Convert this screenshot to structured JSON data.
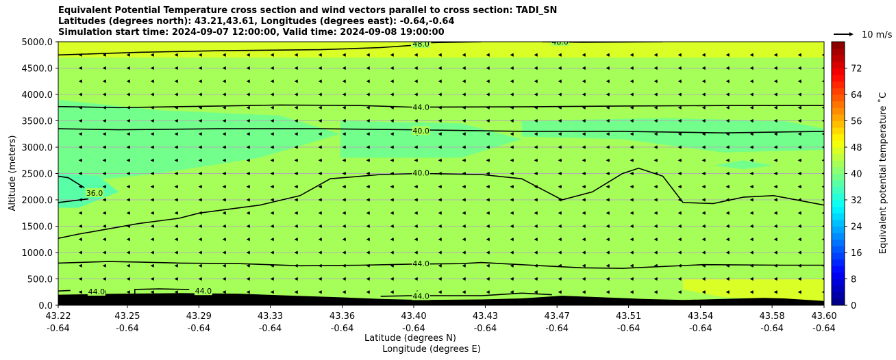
{
  "chart_data": {
    "type": "heatmap",
    "title_lines": [
      "Equivalent Potential Temperature cross section and wind vectors parallel to cross section: TADI_SN",
      "Latitudes (degrees north): 43.21,43.61, Longitudes (degrees east): -0.64,-0.64",
      "Simulation start time: 2024-09-07 12:00:00, Valid time: 2024-09-08 19:00:00"
    ],
    "xlabel_lines": [
      "Latitude (degrees N)",
      "Longitude (degrees E)"
    ],
    "ylabel": "Altitude (meters)",
    "colorbar_label": "Equivalent potential temperature ˚C",
    "wind_key_label": "10 m/s",
    "ylim": [
      0,
      5000
    ],
    "xlim": [
      43.22,
      43.6
    ],
    "x_ticks": [
      {
        "lat": "43.22",
        "lon": "-0.64",
        "v": 43.22
      },
      {
        "lat": "43.25",
        "lon": "-0.64",
        "v": 43.2543
      },
      {
        "lat": "43.29",
        "lon": "-0.64",
        "v": 43.2898
      },
      {
        "lat": "43.33",
        "lon": "-0.64",
        "v": 43.3252
      },
      {
        "lat": "43.36",
        "lon": "-0.64",
        "v": 43.3609
      },
      {
        "lat": "43.40",
        "lon": "-0.64",
        "v": 43.3964
      },
      {
        "lat": "43.43",
        "lon": "-0.64",
        "v": 43.4319
      },
      {
        "lat": "43.47",
        "lon": "-0.64",
        "v": 43.4675
      },
      {
        "lat": "43.51",
        "lon": "-0.64",
        "v": 43.503
      },
      {
        "lat": "43.54",
        "lon": "-0.64",
        "v": 43.5387
      },
      {
        "lat": "43.58",
        "lon": "-0.64",
        "v": 43.5742
      },
      {
        "lat": "43.60",
        "lon": "-0.64",
        "v": 43.6
      }
    ],
    "y_ticks": [
      {
        "label": "0.0",
        "v": 0
      },
      {
        "label": "500.0",
        "v": 500
      },
      {
        "label": "1000.0",
        "v": 1000
      },
      {
        "label": "1500.0",
        "v": 1500
      },
      {
        "label": "2000.0",
        "v": 2000
      },
      {
        "label": "2500.0",
        "v": 2500
      },
      {
        "label": "3000.0",
        "v": 3000
      },
      {
        "label": "3500.0",
        "v": 3500
      },
      {
        "label": "4000.0",
        "v": 4000
      },
      {
        "label": "4500.0",
        "v": 4500
      },
      {
        "label": "5000.0",
        "v": 5000
      }
    ],
    "colorbar": {
      "min": 0,
      "max": 80,
      "ticks": [
        "0",
        "8",
        "16",
        "24",
        "32",
        "40",
        "48",
        "56",
        "64",
        "72"
      ],
      "tick_values": [
        0,
        8,
        16,
        24,
        32,
        40,
        48,
        56,
        64,
        72
      ]
    },
    "background_fill_value": 42,
    "fill_regions": [
      {
        "value": 47,
        "points": [
          [
            43.22,
            4700
          ],
          [
            43.6,
            4700
          ],
          [
            43.6,
            5000
          ],
          [
            43.22,
            5000
          ]
        ]
      },
      {
        "value": 38,
        "points": [
          [
            43.22,
            3900
          ],
          [
            43.27,
            3700
          ],
          [
            43.33,
            3600
          ],
          [
            43.36,
            3250
          ],
          [
            43.32,
            2800
          ],
          [
            43.27,
            2500
          ],
          [
            43.22,
            2300
          ]
        ]
      },
      {
        "value": 38,
        "points": [
          [
            43.36,
            3500
          ],
          [
            43.42,
            3450
          ],
          [
            43.45,
            3150
          ],
          [
            43.42,
            2800
          ],
          [
            43.36,
            2800
          ]
        ]
      },
      {
        "value": 38,
        "points": [
          [
            43.45,
            3500
          ],
          [
            43.52,
            3550
          ],
          [
            43.58,
            3500
          ],
          [
            43.6,
            3350
          ],
          [
            43.6,
            2950
          ],
          [
            43.55,
            2900
          ],
          [
            43.5,
            3150
          ],
          [
            43.45,
            3200
          ]
        ]
      },
      {
        "value": 36,
        "points": [
          [
            43.22,
            2500
          ],
          [
            43.24,
            2450
          ],
          [
            43.25,
            2150
          ],
          [
            43.23,
            1850
          ],
          [
            43.22,
            1850
          ]
        ]
      },
      {
        "value": 38.5,
        "points": [
          [
            43.545,
            2650
          ],
          [
            43.56,
            2750
          ],
          [
            43.575,
            2650
          ],
          [
            43.56,
            2580
          ]
        ]
      },
      {
        "value": 47,
        "points": [
          [
            43.53,
            500
          ],
          [
            43.6,
            500
          ],
          [
            43.6,
            80
          ],
          [
            43.55,
            150
          ],
          [
            43.53,
            300
          ]
        ]
      }
    ],
    "contours": [
      {
        "label": "48.0",
        "points": [
          [
            43.22,
            4750
          ],
          [
            43.26,
            4800
          ],
          [
            43.3,
            4830
          ],
          [
            43.35,
            4850
          ],
          [
            43.38,
            4890
          ],
          [
            43.395,
            4930
          ]
        ],
        "label_at": [
          43.4,
          4960
        ]
      },
      {
        "label": "48.0",
        "points": [
          [
            43.405,
            4980
          ],
          [
            43.43,
            5000
          ]
        ],
        "label_at": null
      },
      {
        "label": "48.0",
        "points": [
          [
            43.46,
            5000
          ],
          [
            43.48,
            4990
          ],
          [
            43.5,
            4995
          ],
          [
            43.52,
            5000
          ]
        ],
        "label_at": [
          43.469,
          5000
        ]
      },
      {
        "label": "44.0",
        "points": [
          [
            43.22,
            3770
          ],
          [
            43.25,
            3750
          ],
          [
            43.3,
            3780
          ],
          [
            43.33,
            3800
          ],
          [
            43.37,
            3790
          ],
          [
            43.395,
            3760
          ],
          [
            43.45,
            3765
          ],
          [
            43.5,
            3780
          ],
          [
            43.55,
            3790
          ],
          [
            43.6,
            3790
          ]
        ],
        "label_at": [
          43.4,
          3760
        ]
      },
      {
        "label": "40.0",
        "points": [
          [
            43.22,
            3350
          ],
          [
            43.25,
            3330
          ],
          [
            43.3,
            3350
          ],
          [
            43.35,
            3350
          ],
          [
            43.395,
            3330
          ],
          [
            43.45,
            3300
          ],
          [
            43.5,
            3300
          ],
          [
            43.55,
            3270
          ],
          [
            43.6,
            3300
          ]
        ],
        "label_at": [
          43.4,
          3310
        ]
      },
      {
        "label": "40.0",
        "points": [
          [
            43.22,
            1270
          ],
          [
            43.23,
            1350
          ],
          [
            43.26,
            1550
          ],
          [
            43.28,
            1650
          ],
          [
            43.29,
            1750
          ],
          [
            43.32,
            1900
          ],
          [
            43.34,
            2080
          ],
          [
            43.355,
            2400
          ],
          [
            43.38,
            2480
          ],
          [
            43.4,
            2500
          ],
          [
            43.43,
            2480
          ],
          [
            43.45,
            2400
          ],
          [
            43.46,
            2200
          ],
          [
            43.47,
            2000
          ],
          [
            43.485,
            2150
          ],
          [
            43.5,
            2500
          ],
          [
            43.508,
            2600
          ],
          [
            43.52,
            2450
          ],
          [
            43.53,
            1950
          ],
          [
            43.545,
            1930
          ],
          [
            43.56,
            2050
          ],
          [
            43.575,
            2080
          ],
          [
            43.6,
            1900
          ]
        ],
        "label_at": [
          43.4,
          2510
        ]
      },
      {
        "label": "36.0",
        "points": [
          [
            43.22,
            2450
          ],
          [
            43.225,
            2420
          ],
          [
            43.233,
            2230
          ]
        ],
        "label_at": [
          43.238,
          2130
        ]
      },
      {
        "label": "36.0",
        "points": [
          [
            43.22,
            1950
          ],
          [
            43.235,
            2020
          ]
        ],
        "label_at": null
      },
      {
        "label": "44.0",
        "points": [
          [
            43.22,
            800
          ],
          [
            43.245,
            830
          ],
          [
            43.26,
            820
          ],
          [
            43.28,
            800
          ],
          [
            43.31,
            790
          ],
          [
            43.34,
            750
          ],
          [
            43.37,
            760
          ],
          [
            43.395,
            780
          ],
          [
            43.42,
            790
          ],
          [
            43.43,
            810
          ],
          [
            43.46,
            750
          ],
          [
            43.48,
            710
          ],
          [
            43.5,
            700
          ],
          [
            43.54,
            770
          ],
          [
            43.58,
            760
          ],
          [
            43.6,
            760
          ]
        ],
        "label_at": [
          43.4,
          790
        ]
      },
      {
        "label": "44.0",
        "points": [
          [
            43.38,
            170
          ],
          [
            43.395,
            180
          ],
          [
            43.43,
            180
          ],
          [
            43.45,
            230
          ],
          [
            43.465,
            200
          ]
        ],
        "label_at": [
          43.4,
          175
        ]
      },
      {
        "label": "44.0",
        "points": [
          [
            43.22,
            270
          ],
          [
            43.226,
            280
          ]
        ],
        "label_at": [
          43.239,
          260
        ]
      },
      {
        "label": "44.0",
        "points": [
          [
            43.258,
            200
          ],
          [
            43.258,
            300
          ],
          [
            43.27,
            310
          ],
          [
            43.285,
            300
          ]
        ],
        "label_at": [
          43.292,
          270
        ]
      }
    ],
    "terrain": [
      [
        43.22,
        200
      ],
      [
        43.25,
        220
      ],
      [
        43.28,
        230
      ],
      [
        43.31,
        220
      ],
      [
        43.33,
        190
      ],
      [
        43.36,
        150
      ],
      [
        43.38,
        120
      ],
      [
        43.4,
        100
      ],
      [
        43.43,
        110
      ],
      [
        43.45,
        130
      ],
      [
        43.47,
        180
      ],
      [
        43.49,
        150
      ],
      [
        43.51,
        120
      ],
      [
        43.53,
        100
      ],
      [
        43.55,
        120
      ],
      [
        43.57,
        140
      ],
      [
        43.58,
        130
      ],
      [
        43.6,
        80
      ]
    ],
    "wind_vectors": {
      "u_ms": -0.6,
      "rows_alt_m": [
        250,
        500,
        750,
        1000,
        1250,
        1500,
        1750,
        2000,
        2250,
        2500,
        2750,
        3000,
        3250,
        3500,
        3750,
        4000,
        4250,
        4500,
        4750
      ],
      "cols": 32
    },
    "grid": true,
    "legend_position": "none"
  }
}
